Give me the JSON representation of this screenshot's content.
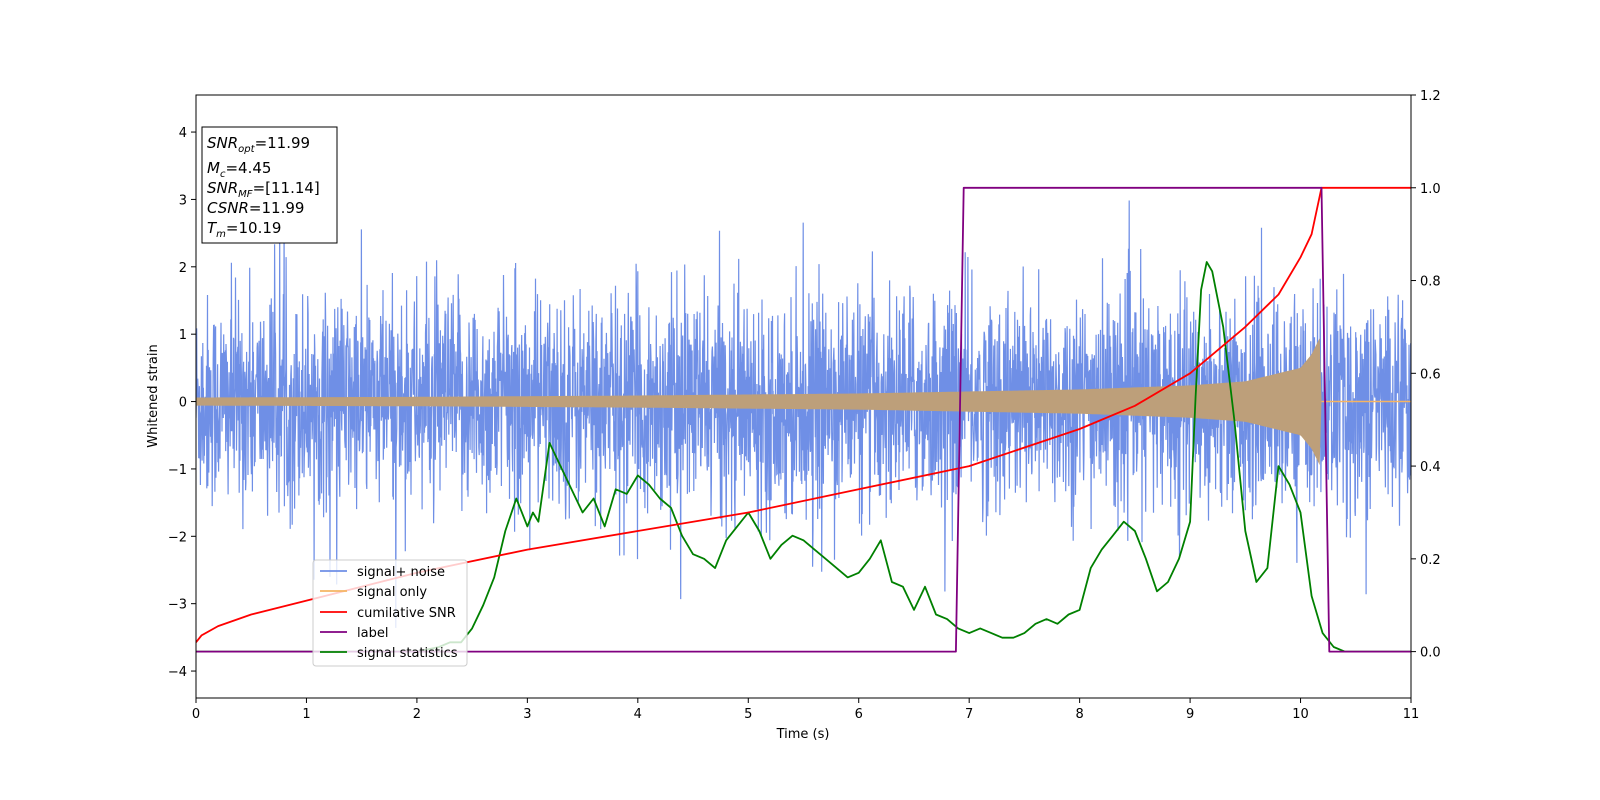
{
  "chart_data": {
    "type": "line",
    "xlabel": "Time (s)",
    "ylabel": "Whitened strain",
    "xlim": [
      0,
      11
    ],
    "ylim": [
      -4.4,
      4.55
    ],
    "y2lim": [
      -0.1,
      1.2
    ],
    "xticks": [
      "0",
      "1",
      "2",
      "3",
      "4",
      "5",
      "6",
      "7",
      "8",
      "9",
      "10",
      "11"
    ],
    "yticks": [
      "−4",
      "−3",
      "−2",
      "−1",
      "0",
      "1",
      "2",
      "3",
      "4"
    ],
    "y2ticks": [
      "0.0",
      "0.2",
      "0.4",
      "0.6",
      "0.8",
      "1.0",
      "1.2"
    ],
    "grid": false,
    "legend_position": "lower-left",
    "legend": [
      "signal+ noise",
      "signal only",
      "cumilative SNR",
      "label",
      "signal statistics"
    ],
    "colors": {
      "noise": "#6f8fe6",
      "signal": "#f5b463",
      "overlap": "#bd9f7a",
      "snr": "#ff0000",
      "label": "#800080",
      "stat": "#008000"
    },
    "annotation": {
      "snr_opt": {
        "sym": "SNR",
        "sub": "opt",
        "val": "=11.99"
      },
      "mc": {
        "sym": "M",
        "sub": "c",
        "val": "=4.45"
      },
      "snr_mf": {
        "sym": "SNR",
        "sub": "MF",
        "val": "=[11.14]"
      },
      "csnr": {
        "sym": "CSNR",
        "sub": "",
        "val": "=11.99"
      },
      "tm": {
        "sym": "T",
        "sub": "m",
        "val": "=10.19"
      }
    },
    "series": [
      {
        "name": "signal+ noise",
        "axis": "left",
        "description_envelope": {
          "typical_abs": 1.3,
          "peak_min": -3.9,
          "peak_max": 4.15,
          "t_end": 11
        }
      },
      {
        "name": "signal only",
        "axis": "left",
        "envelope": {
          "t": [
            0,
            2,
            4,
            6,
            8,
            9,
            9.5,
            10,
            10.1,
            10.19
          ],
          "amp": [
            0.06,
            0.07,
            0.09,
            0.12,
            0.18,
            0.24,
            0.3,
            0.5,
            0.7,
            1.0
          ]
        },
        "merger_time": 10.19
      },
      {
        "name": "cumilative SNR",
        "axis": "right",
        "x": [
          0,
          0.05,
          0.2,
          0.5,
          1,
          2,
          3,
          4,
          5,
          6,
          7,
          8,
          8.5,
          9,
          9.5,
          9.8,
          10,
          10.1,
          10.19,
          10.2,
          11
        ],
        "y": [
          0.02,
          0.035,
          0.055,
          0.08,
          0.11,
          0.17,
          0.22,
          0.26,
          0.3,
          0.35,
          0.4,
          0.48,
          0.53,
          0.6,
          0.7,
          0.77,
          0.85,
          0.9,
          1.0,
          1.0,
          1.0
        ]
      },
      {
        "name": "label",
        "axis": "right",
        "x": [
          0,
          6.88,
          6.95,
          10.19,
          10.26,
          11
        ],
        "y": [
          0,
          0,
          1,
          1,
          0,
          0
        ]
      },
      {
        "name": "signal statistics",
        "axis": "right",
        "x": [
          0,
          2.0,
          2.2,
          2.3,
          2.4,
          2.5,
          2.6,
          2.7,
          2.8,
          2.9,
          3.0,
          3.05,
          3.1,
          3.2,
          3.3,
          3.4,
          3.5,
          3.6,
          3.7,
          3.8,
          3.9,
          4.0,
          4.1,
          4.2,
          4.3,
          4.4,
          4.5,
          4.6,
          4.7,
          4.8,
          4.9,
          5.0,
          5.1,
          5.2,
          5.3,
          5.4,
          5.5,
          5.6,
          5.7,
          5.8,
          5.9,
          6.0,
          6.1,
          6.2,
          6.3,
          6.4,
          6.5,
          6.6,
          6.7,
          6.8,
          6.9,
          7.0,
          7.1,
          7.2,
          7.3,
          7.4,
          7.5,
          7.6,
          7.7,
          7.8,
          7.9,
          8.0,
          8.1,
          8.2,
          8.3,
          8.4,
          8.5,
          8.6,
          8.7,
          8.8,
          8.9,
          9.0,
          9.05,
          9.1,
          9.15,
          9.2,
          9.3,
          9.4,
          9.5,
          9.6,
          9.7,
          9.8,
          9.9,
          10.0,
          10.1,
          10.2,
          10.3,
          10.4,
          10.5,
          11
        ],
        "y": [
          0.0,
          0.0,
          0.01,
          0.02,
          0.02,
          0.05,
          0.1,
          0.16,
          0.26,
          0.33,
          0.27,
          0.3,
          0.28,
          0.45,
          0.4,
          0.35,
          0.3,
          0.33,
          0.27,
          0.35,
          0.34,
          0.38,
          0.36,
          0.33,
          0.31,
          0.25,
          0.21,
          0.2,
          0.18,
          0.24,
          0.27,
          0.3,
          0.26,
          0.2,
          0.23,
          0.25,
          0.24,
          0.22,
          0.2,
          0.18,
          0.16,
          0.17,
          0.2,
          0.24,
          0.15,
          0.14,
          0.09,
          0.14,
          0.08,
          0.07,
          0.05,
          0.04,
          0.05,
          0.04,
          0.03,
          0.03,
          0.04,
          0.06,
          0.07,
          0.06,
          0.08,
          0.09,
          0.18,
          0.22,
          0.25,
          0.28,
          0.26,
          0.2,
          0.13,
          0.15,
          0.2,
          0.28,
          0.55,
          0.78,
          0.84,
          0.82,
          0.7,
          0.5,
          0.26,
          0.15,
          0.18,
          0.4,
          0.36,
          0.3,
          0.12,
          0.04,
          0.01,
          0.0,
          0.0,
          0.0
        ]
      }
    ]
  }
}
